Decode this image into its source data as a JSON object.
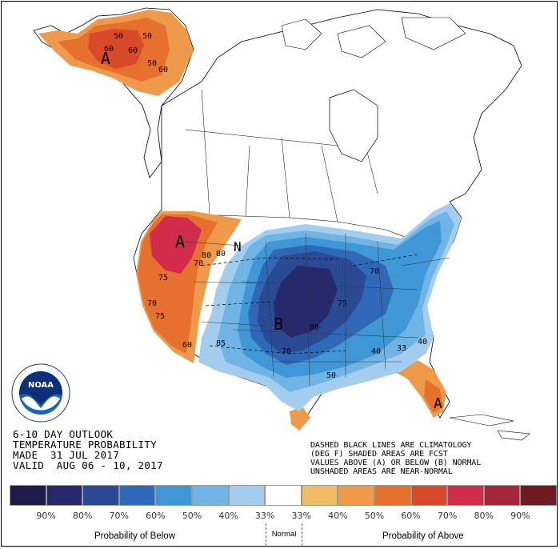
{
  "outlook": {
    "title": "6-10 DAY OUTLOOK",
    "subtitle": "TEMPERATURE PROBABILITY",
    "made": "MADE  31 JUL 2017",
    "valid": "VALID  AUG 06 - 10, 2017"
  },
  "notes": [
    "DASHED BLACK LINES ARE CLIMATOLOGY",
    "(DEG F) SHADED AREAS ARE FCST",
    "VALUES ABOVE (A) OR BELOW (B) NORMAL",
    "UNSHADED AREAS ARE NEAR-NORMAL"
  ],
  "legend": {
    "colors": [
      "#1d1b4a",
      "#262a6c",
      "#2b4a94",
      "#3068b8",
      "#3f97d6",
      "#6fb4e4",
      "#a3cdee",
      "#ffffff",
      "#f2bb66",
      "#ee9a4a",
      "#e6702d",
      "#d84a2a",
      "#d12d4a",
      "#a52638",
      "#6d1a22"
    ],
    "labels": [
      "90%",
      "80%",
      "70%",
      "60%",
      "50%",
      "40%",
      "33%",
      "33%",
      "40%",
      "50%",
      "60%",
      "70%",
      "80%",
      "90%"
    ],
    "below_caption": "Probability of Below",
    "normal_caption": "Normal",
    "above_caption": "Probability of Above"
  },
  "map_labels": {
    "above_marker": "A",
    "below_marker": "B",
    "normal_marker": "N"
  },
  "contour_values": [
    "50",
    "50",
    "60",
    "60",
    "50",
    "60",
    "70",
    "75",
    "70",
    "80",
    "80",
    "75",
    "85",
    "70",
    "80",
    "75",
    "70",
    "50",
    "40",
    "33",
    "40",
    "60"
  ],
  "agency": "NOAA"
}
